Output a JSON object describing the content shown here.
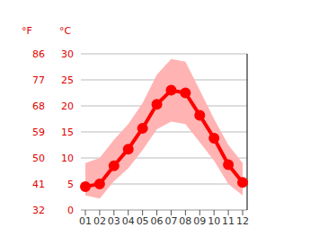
{
  "chart_data": {
    "type": "line",
    "y_label": "°C",
    "y2_label": "°F",
    "categories": [
      "01",
      "02",
      "03",
      "04",
      "05",
      "06",
      "07",
      "08",
      "09",
      "10",
      "11",
      "12"
    ],
    "series": [
      {
        "type": "band",
        "color": "#ffb3b3",
        "low": [
          2.8,
          2.2,
          5.5,
          8,
          11.5,
          15.5,
          17,
          16.5,
          13,
          9.5,
          5,
          2.8
        ],
        "high": [
          9,
          10,
          13.5,
          16.5,
          20.5,
          26,
          29,
          28.5,
          23,
          17.5,
          12.5,
          9
        ]
      },
      {
        "type": "line",
        "color": "#ff0000",
        "marker": "circle",
        "values": [
          4.5,
          5,
          8.5,
          11.7,
          15.7,
          20.3,
          23,
          22.5,
          18.2,
          13.8,
          8.7,
          5.3
        ]
      }
    ],
    "ylim": [
      0,
      30
    ],
    "yticks": [
      0,
      5,
      10,
      15,
      20,
      25,
      30
    ],
    "y2lim": [
      32,
      86
    ],
    "y2ticks": [
      32,
      41,
      50,
      59,
      68,
      77,
      86
    ],
    "grid": true
  }
}
